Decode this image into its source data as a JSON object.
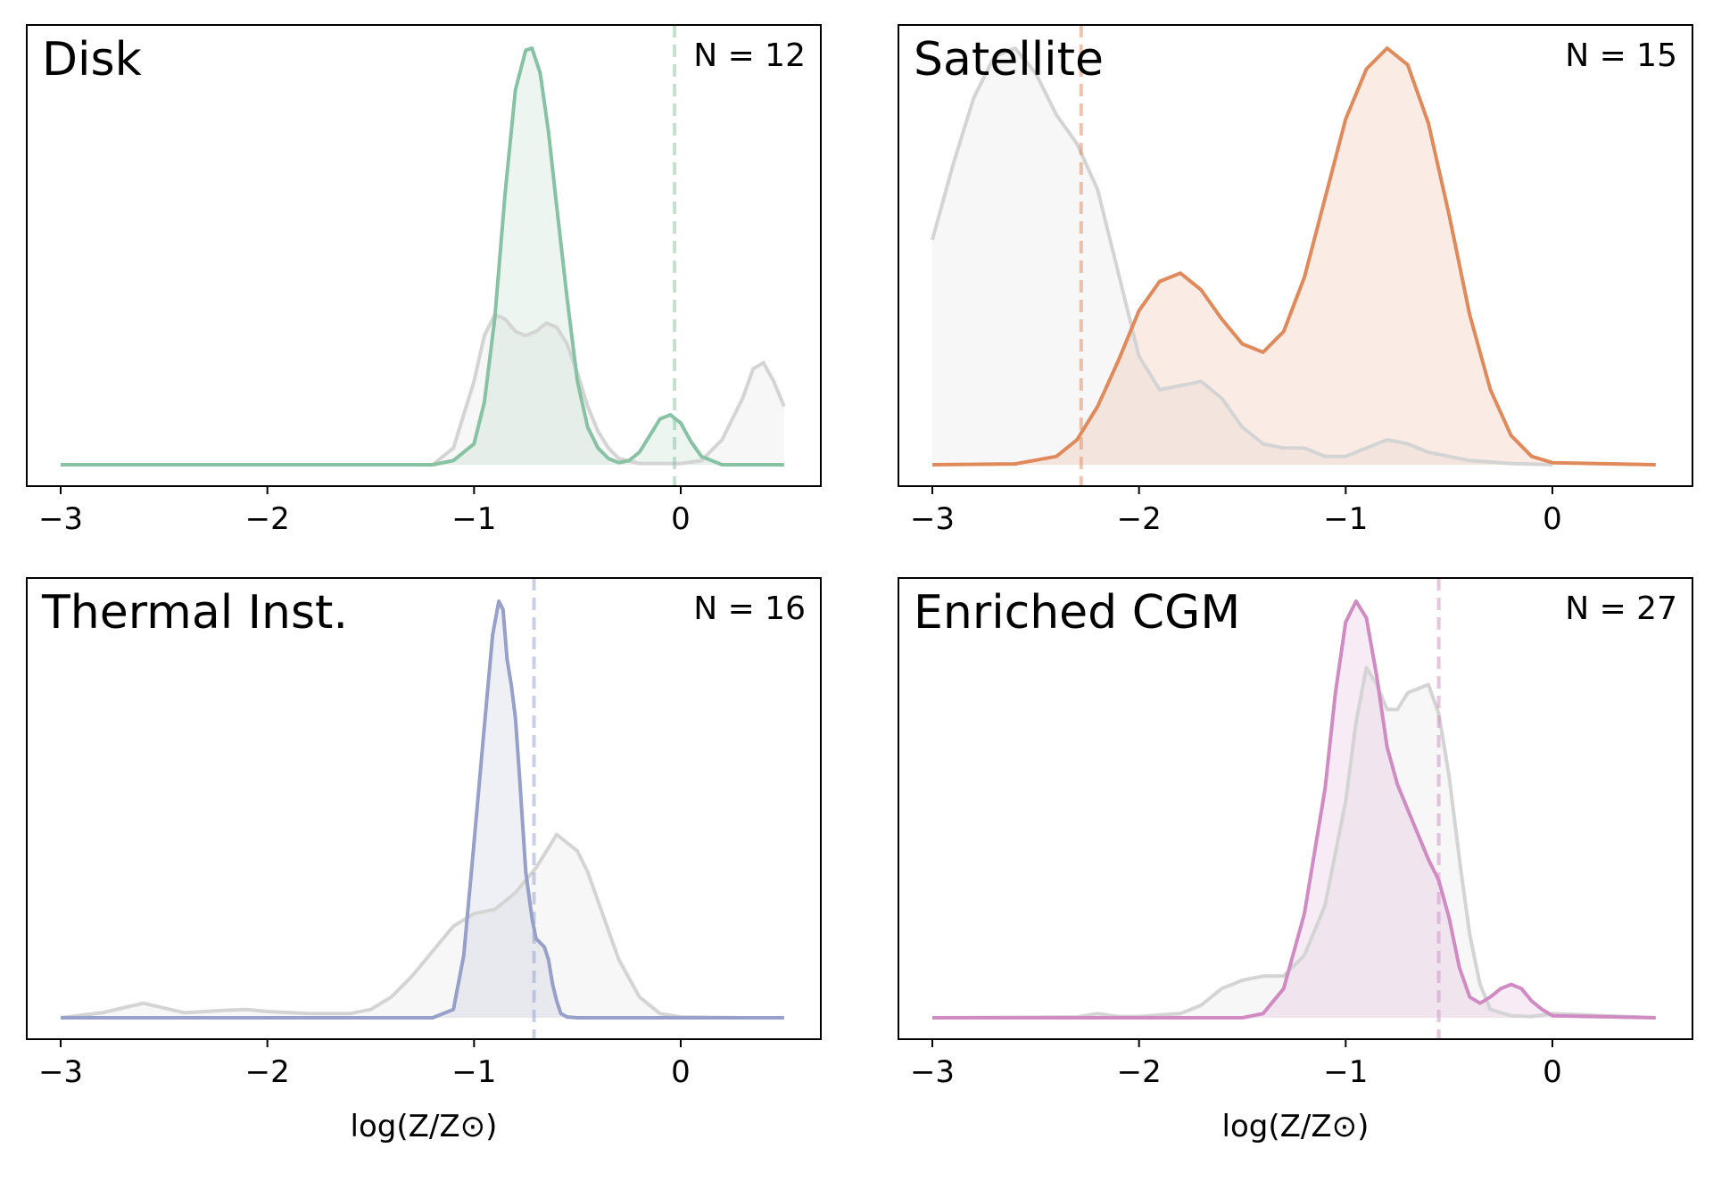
{
  "figure": {
    "xlabel": "log(Z/Z⊙)",
    "colors": {
      "context": "#d4d4d4",
      "context_fill": "#f7f7f7",
      "axes": "#000000"
    }
  },
  "chart_data": [
    {
      "type": "area",
      "title": "Disk",
      "annotation": "N = 12",
      "color": "#88c2a4",
      "xlim": [
        -3.0,
        0.5
      ],
      "xticks": [
        "−3",
        "−2",
        "−1",
        "0"
      ],
      "xlabel": "",
      "median_line_x": -0.03,
      "series": [
        {
          "x": [
            -3.0,
            -2.0,
            -1.2,
            -1.1,
            -1.0,
            -0.95,
            -0.9,
            -0.85,
            -0.8,
            -0.75,
            -0.72,
            -0.68,
            -0.64,
            -0.6,
            -0.55,
            -0.5,
            -0.45,
            -0.4,
            -0.35,
            -0.3,
            -0.25,
            -0.2,
            -0.15,
            -0.1,
            -0.05,
            0.0,
            0.05,
            0.1,
            0.2,
            0.3,
            0.5
          ],
          "y": [
            0,
            0,
            0,
            0.01,
            0.05,
            0.15,
            0.35,
            0.65,
            0.9,
            0.995,
            1.0,
            0.94,
            0.8,
            0.62,
            0.4,
            0.2,
            0.09,
            0.04,
            0.015,
            0.005,
            0.01,
            0.03,
            0.07,
            0.11,
            0.12,
            0.1,
            0.055,
            0.02,
            0,
            0,
            0
          ]
        },
        {
          "x": [
            -3.0,
            -1.2,
            -1.1,
            -1.0,
            -0.95,
            -0.9,
            -0.85,
            -0.8,
            -0.75,
            -0.7,
            -0.65,
            -0.6,
            -0.55,
            -0.5,
            -0.45,
            -0.4,
            -0.35,
            -0.3,
            -0.2,
            -0.1,
            0.0,
            0.1,
            0.2,
            0.3,
            0.35,
            0.4,
            0.45,
            0.5
          ],
          "y": [
            0,
            0,
            0.04,
            0.2,
            0.31,
            0.36,
            0.35,
            0.32,
            0.31,
            0.32,
            0.34,
            0.33,
            0.29,
            0.22,
            0.14,
            0.08,
            0.04,
            0.015,
            0.003,
            0.003,
            0.003,
            0.01,
            0.06,
            0.16,
            0.23,
            0.245,
            0.2,
            0.14
          ]
        }
      ]
    },
    {
      "type": "area",
      "title": "Satellite",
      "annotation": "N = 15",
      "color": "#e08a5b",
      "xlim": [
        -3.0,
        0.5
      ],
      "xticks": [
        "−3",
        "−2",
        "−1",
        "0"
      ],
      "xlabel": "",
      "median_line_x": -2.28,
      "series": [
        {
          "x": [
            -3.0,
            -2.6,
            -2.4,
            -2.3,
            -2.2,
            -2.1,
            -2.0,
            -1.9,
            -1.8,
            -1.7,
            -1.6,
            -1.5,
            -1.4,
            -1.3,
            -1.2,
            -1.1,
            -1.0,
            -0.9,
            -0.8,
            -0.7,
            -0.6,
            -0.5,
            -0.4,
            -0.3,
            -0.2,
            -0.1,
            0.0,
            0.5
          ],
          "y": [
            0,
            0.002,
            0.02,
            0.06,
            0.14,
            0.25,
            0.37,
            0.44,
            0.46,
            0.42,
            0.35,
            0.29,
            0.27,
            0.32,
            0.45,
            0.64,
            0.83,
            0.95,
            1.0,
            0.96,
            0.82,
            0.6,
            0.36,
            0.18,
            0.07,
            0.02,
            0.005,
            0
          ]
        },
        {
          "x": [
            -3.0,
            -2.9,
            -2.8,
            -2.7,
            -2.6,
            -2.5,
            -2.4,
            -2.3,
            -2.2,
            -2.1,
            -2.0,
            -1.9,
            -1.8,
            -1.7,
            -1.6,
            -1.5,
            -1.4,
            -1.3,
            -1.2,
            -1.1,
            -1.0,
            -0.9,
            -0.8,
            -0.7,
            -0.6,
            -0.5,
            -0.4,
            -0.2,
            0.0
          ],
          "y": [
            0.54,
            0.72,
            0.88,
            0.98,
            1.0,
            0.94,
            0.84,
            0.77,
            0.66,
            0.46,
            0.26,
            0.18,
            0.19,
            0.2,
            0.16,
            0.09,
            0.05,
            0.04,
            0.04,
            0.02,
            0.02,
            0.04,
            0.06,
            0.05,
            0.03,
            0.02,
            0.01,
            0.003,
            0
          ]
        }
      ]
    },
    {
      "type": "area",
      "title": "Thermal Inst.",
      "annotation": "N = 16",
      "color": "#96a0c9",
      "xlim": [
        -3.0,
        0.5
      ],
      "xticks": [
        "−3",
        "−2",
        "−1",
        "0"
      ],
      "xlabel": "log(Z/Z⊙)",
      "median_line_x": -0.71,
      "series": [
        {
          "x": [
            -3.0,
            -1.2,
            -1.1,
            -1.05,
            -1.0,
            -0.95,
            -0.91,
            -0.88,
            -0.86,
            -0.84,
            -0.82,
            -0.8,
            -0.78,
            -0.75,
            -0.72,
            -0.7,
            -0.68,
            -0.66,
            -0.64,
            -0.62,
            -0.6,
            -0.58,
            -0.55,
            -0.5,
            0.5
          ],
          "y": [
            0,
            0,
            0.02,
            0.15,
            0.42,
            0.7,
            0.92,
            1.0,
            0.98,
            0.86,
            0.8,
            0.72,
            0.58,
            0.35,
            0.24,
            0.19,
            0.18,
            0.17,
            0.14,
            0.08,
            0.04,
            0.01,
            0.002,
            0,
            0
          ]
        },
        {
          "x": [
            -3.0,
            -2.8,
            -2.6,
            -2.4,
            -2.2,
            -2.1,
            -2.0,
            -1.8,
            -1.6,
            -1.5,
            -1.4,
            -1.3,
            -1.2,
            -1.1,
            -1.0,
            -0.9,
            -0.8,
            -0.7,
            -0.6,
            -0.55,
            -0.5,
            -0.45,
            -0.4,
            -0.3,
            -0.2,
            -0.1,
            0.0,
            0.3,
            0.5
          ],
          "y": [
            0,
            0.012,
            0.035,
            0.012,
            0.018,
            0.02,
            0.015,
            0.01,
            0.01,
            0.02,
            0.05,
            0.1,
            0.16,
            0.22,
            0.25,
            0.26,
            0.3,
            0.36,
            0.44,
            0.42,
            0.4,
            0.35,
            0.28,
            0.14,
            0.05,
            0.01,
            0.002,
            0,
            0
          ]
        }
      ]
    },
    {
      "type": "area",
      "title": "Enriched CGM",
      "annotation": "N = 27",
      "color": "#d08bc3",
      "xlim": [
        -3.0,
        0.5
      ],
      "xticks": [
        "−3",
        "−2",
        "−1",
        "0"
      ],
      "xlabel": "log(Z/Z⊙)",
      "median_line_x": -0.55,
      "series": [
        {
          "x": [
            -3.0,
            -1.5,
            -1.4,
            -1.3,
            -1.2,
            -1.1,
            -1.05,
            -1.0,
            -0.95,
            -0.9,
            -0.85,
            -0.8,
            -0.75,
            -0.7,
            -0.65,
            -0.6,
            -0.55,
            -0.5,
            -0.45,
            -0.4,
            -0.35,
            -0.3,
            -0.25,
            -0.2,
            -0.15,
            -0.1,
            -0.05,
            0.0,
            0.5
          ],
          "y": [
            0,
            0,
            0.01,
            0.07,
            0.25,
            0.55,
            0.78,
            0.95,
            1.0,
            0.96,
            0.82,
            0.65,
            0.56,
            0.5,
            0.44,
            0.38,
            0.33,
            0.24,
            0.12,
            0.05,
            0.035,
            0.05,
            0.07,
            0.08,
            0.07,
            0.04,
            0.02,
            0.005,
            0
          ]
        },
        {
          "x": [
            -3.0,
            -2.3,
            -2.2,
            -2.1,
            -2.0,
            -1.8,
            -1.7,
            -1.6,
            -1.5,
            -1.4,
            -1.3,
            -1.2,
            -1.1,
            -1.0,
            -0.95,
            -0.9,
            -0.85,
            -0.8,
            -0.75,
            -0.7,
            -0.65,
            -0.6,
            -0.55,
            -0.5,
            -0.45,
            -0.4,
            -0.35,
            -0.3,
            -0.2,
            -0.1,
            0.0,
            0.5
          ],
          "y": [
            0,
            0.002,
            0.01,
            0.003,
            0.003,
            0.01,
            0.03,
            0.07,
            0.09,
            0.1,
            0.1,
            0.15,
            0.27,
            0.52,
            0.71,
            0.84,
            0.8,
            0.74,
            0.74,
            0.78,
            0.79,
            0.8,
            0.73,
            0.58,
            0.38,
            0.2,
            0.08,
            0.02,
            0.005,
            0.003,
            0.01,
            0
          ]
        }
      ]
    }
  ]
}
